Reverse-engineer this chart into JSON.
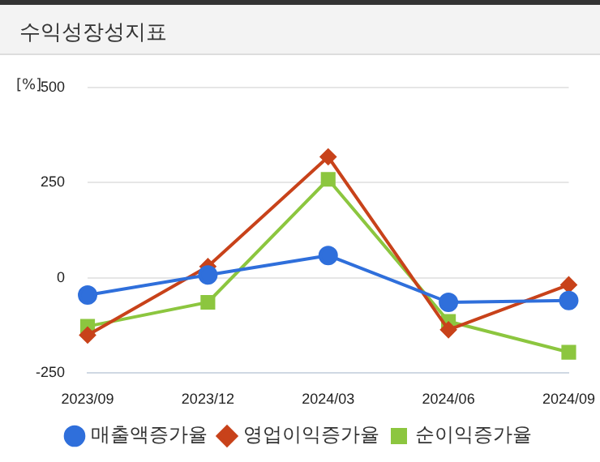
{
  "chart_data": {
    "type": "line",
    "title": "수익성장성지표",
    "ylabel": "[%]",
    "categories": [
      "2023/09",
      "2023/12",
      "2024/03",
      "2024/06",
      "2024/09"
    ],
    "series": [
      {
        "name": "매출액증가율",
        "color": "#2f6fdb",
        "marker": "circle",
        "values": [
          -45,
          8,
          59,
          -64,
          -59
        ]
      },
      {
        "name": "영업이익증가율",
        "color": "#c8421a",
        "marker": "diamond",
        "values": [
          -150,
          30,
          318,
          -136,
          -18
        ]
      },
      {
        "name": "순이익증가율",
        "color": "#8cc63f",
        "marker": "square",
        "values": [
          -127,
          -64,
          259,
          -114,
          -195
        ]
      }
    ],
    "ylim": [
      -250,
      500
    ],
    "yticks": [
      -250,
      0,
      250,
      500
    ],
    "grid": "y",
    "legend": "bottom"
  }
}
